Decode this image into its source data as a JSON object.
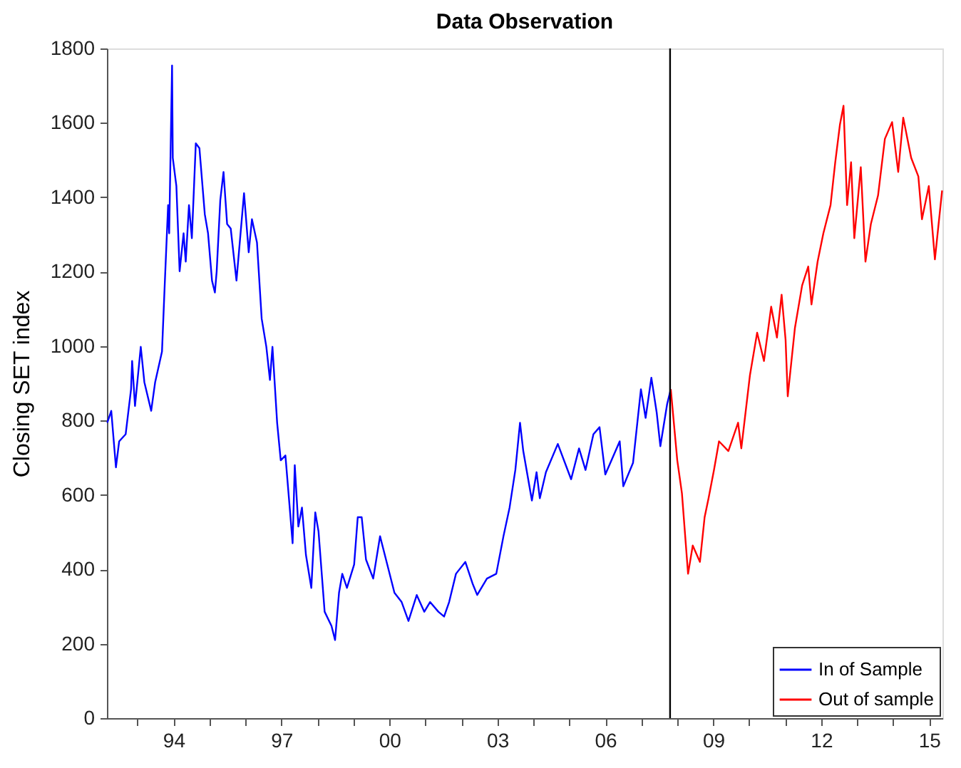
{
  "chart_data": {
    "type": "line",
    "title": "Data Observation",
    "ylabel": "Closing SET index",
    "xlim": [
      1992.15,
      2015.37
    ],
    "ylim": [
      0,
      1800
    ],
    "xticks": [
      {
        "value": 1993,
        "label": null
      },
      {
        "value": 1994,
        "label": "94"
      },
      {
        "value": 1995,
        "label": null
      },
      {
        "value": 1996,
        "label": null
      },
      {
        "value": 1997,
        "label": "97"
      },
      {
        "value": 1998,
        "label": null
      },
      {
        "value": 1999,
        "label": null
      },
      {
        "value": 2000,
        "label": "00"
      },
      {
        "value": 2001,
        "label": null
      },
      {
        "value": 2002,
        "label": null
      },
      {
        "value": 2003,
        "label": "03"
      },
      {
        "value": 2004,
        "label": null
      },
      {
        "value": 2005,
        "label": null
      },
      {
        "value": 2006,
        "label": "06"
      },
      {
        "value": 2007,
        "label": null
      },
      {
        "value": 2008,
        "label": null
      },
      {
        "value": 2009,
        "label": "09"
      },
      {
        "value": 2010,
        "label": null
      },
      {
        "value": 2011,
        "label": null
      },
      {
        "value": 2012,
        "label": "12"
      },
      {
        "value": 2013,
        "label": null
      },
      {
        "value": 2014,
        "label": null
      },
      {
        "value": 2015,
        "label": "15"
      }
    ],
    "yticks": [
      0,
      200,
      400,
      600,
      800,
      1000,
      1200,
      1400,
      1600,
      1800
    ],
    "grid": false,
    "legend": "bottom right",
    "line_style": "solid",
    "marker": "none",
    "ref_lines": [
      {
        "axis": "x",
        "value": 2007.8,
        "label": null,
        "color": "#000000"
      }
    ],
    "series": [
      {
        "name": "In of Sample",
        "color": "#0000ff",
        "x": [
          1992.16,
          1992.27,
          1992.4,
          1992.49,
          1992.67,
          1992.82,
          1992.85,
          1992.93,
          1993.09,
          1993.19,
          1993.38,
          1993.49,
          1993.68,
          1993.75,
          1993.85,
          1993.88,
          1993.96,
          1993.98,
          1994.08,
          1994.17,
          1994.28,
          1994.34,
          1994.43,
          1994.51,
          1994.62,
          1994.72,
          1994.87,
          1994.96,
          1995.07,
          1995.15,
          1995.2,
          1995.3,
          1995.39,
          1995.49,
          1995.59,
          1995.75,
          1995.96,
          1996.09,
          1996.18,
          1996.32,
          1996.45,
          1996.58,
          1996.68,
          1996.75,
          1996.88,
          1996.98,
          1997.11,
          1997.24,
          1997.31,
          1997.37,
          1997.47,
          1997.57,
          1997.68,
          1997.83,
          1997.94,
          1998.03,
          1998.2,
          1998.39,
          1998.49,
          1998.6,
          1998.69,
          1998.82,
          1999.02,
          1999.12,
          1999.23,
          1999.35,
          1999.55,
          1999.74,
          1999.94,
          2000.14,
          2000.34,
          2000.53,
          2000.76,
          2000.97,
          2001.13,
          2001.36,
          2001.52,
          2001.66,
          2001.85,
          2002.11,
          2002.31,
          2002.44,
          2002.71,
          2002.97,
          2003.17,
          2003.34,
          2003.5,
          2003.63,
          2003.72,
          2003.96,
          2004.09,
          2004.18,
          2004.35,
          2004.68,
          2005.05,
          2005.27,
          2005.45,
          2005.67,
          2005.84,
          2006.0,
          2006.4,
          2006.5,
          2006.77,
          2006.99,
          2007.12,
          2007.28,
          2007.43,
          2007.53,
          2007.72,
          2007.82
        ],
        "values": [
          794,
          826,
          674,
          744,
          763,
          884,
          960,
          839,
          998,
          903,
          826,
          903,
          985,
          1151,
          1379,
          1303,
          1754,
          1506,
          1430,
          1201,
          1303,
          1227,
          1379,
          1290,
          1545,
          1532,
          1354,
          1303,
          1176,
          1144,
          1201,
          1392,
          1468,
          1328,
          1316,
          1176,
          1411,
          1252,
          1341,
          1278,
          1074,
          998,
          909,
          998,
          794,
          693,
          706,
          553,
          470,
          680,
          515,
          566,
          439,
          350,
          553,
          502,
          286,
          248,
          210,
          337,
          388,
          350,
          413,
          540,
          540,
          426,
          375,
          489,
          413,
          337,
          312,
          261,
          331,
          286,
          312,
          286,
          273,
          312,
          388,
          420,
          362,
          331,
          375,
          388,
          489,
          566,
          667,
          794,
          718,
          585,
          661,
          591,
          661,
          737,
          642,
          725,
          667,
          763,
          782,
          655,
          744,
          623,
          686,
          884,
          807,
          915,
          820,
          731,
          845,
          884
        ]
      },
      {
        "name": "Out of sample",
        "color": "#ff0000",
        "x": [
          2007.82,
          2008.0,
          2008.13,
          2008.3,
          2008.43,
          2008.63,
          2008.76,
          2008.87,
          2009.02,
          2009.16,
          2009.42,
          2009.69,
          2009.78,
          2010.02,
          2010.22,
          2010.41,
          2010.61,
          2010.77,
          2010.9,
          2011.01,
          2011.07,
          2011.27,
          2011.47,
          2011.64,
          2011.73,
          2011.9,
          2012.06,
          2012.26,
          2012.39,
          2012.52,
          2012.62,
          2012.72,
          2012.83,
          2012.92,
          2013.1,
          2013.23,
          2013.38,
          2013.58,
          2013.77,
          2013.97,
          2014.14,
          2014.28,
          2014.5,
          2014.7,
          2014.8,
          2014.99,
          2015.16,
          2015.36
        ],
        "values": [
          884,
          693,
          604,
          388,
          464,
          420,
          540,
          591,
          667,
          744,
          718,
          794,
          725,
          922,
          1036,
          960,
          1106,
          1023,
          1138,
          1017,
          865,
          1049,
          1163,
          1214,
          1112,
          1227,
          1303,
          1379,
          1494,
          1595,
          1646,
          1379,
          1494,
          1290,
          1481,
          1227,
          1328,
          1405,
          1557,
          1602,
          1468,
          1614,
          1506,
          1456,
          1341,
          1430,
          1233,
          1418
        ]
      }
    ]
  }
}
